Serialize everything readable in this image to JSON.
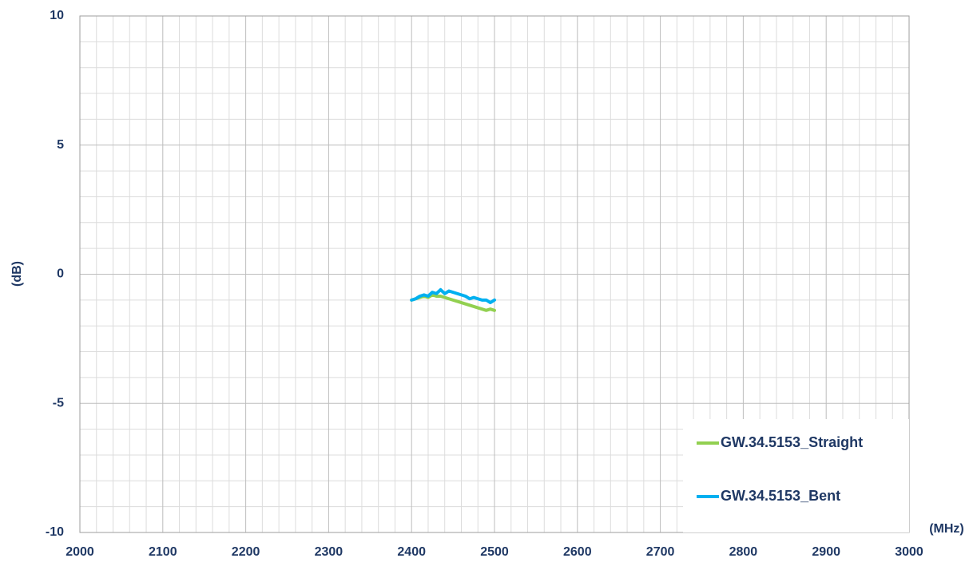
{
  "chart_data": {
    "type": "line",
    "x_label": "(MHz)",
    "y_label": "(dB)",
    "x": [
      2400,
      2405,
      2410,
      2415,
      2420,
      2425,
      2430,
      2435,
      2440,
      2445,
      2450,
      2455,
      2460,
      2465,
      2470,
      2475,
      2480,
      2485,
      2490,
      2495,
      2500
    ],
    "series": [
      {
        "name": "GW.34.5153_Straight",
        "color": "#92d050",
        "values": [
          -1.0,
          -0.95,
          -0.9,
          -0.85,
          -0.9,
          -0.8,
          -0.85,
          -0.85,
          -0.9,
          -0.95,
          -1.0,
          -1.05,
          -1.1,
          -1.15,
          -1.2,
          -1.25,
          -1.3,
          -1.35,
          -1.4,
          -1.35,
          -1.4
        ]
      },
      {
        "name": "GW.34.5153_Bent",
        "color": "#00b0f0",
        "values": [
          -1.0,
          -0.95,
          -0.85,
          -0.8,
          -0.85,
          -0.7,
          -0.75,
          -0.6,
          -0.75,
          -0.65,
          -0.7,
          -0.75,
          -0.8,
          -0.85,
          -0.95,
          -0.9,
          -0.95,
          -1.0,
          -1.0,
          -1.1,
          -1.0
        ]
      }
    ],
    "xlim": [
      2000,
      3000
    ],
    "xticks": [
      2000,
      2100,
      2200,
      2300,
      2400,
      2500,
      2600,
      2700,
      2800,
      2900,
      3000
    ],
    "ylim": [
      -10,
      10
    ],
    "yticks": [
      -10,
      -5,
      0,
      5,
      10
    ],
    "xminor": [
      2020,
      2040,
      2060,
      2080,
      2120,
      2140,
      2160,
      2180,
      2220,
      2240,
      2260,
      2280,
      2320,
      2340,
      2360,
      2380,
      2420,
      2440,
      2460,
      2480,
      2520,
      2540,
      2560,
      2580,
      2620,
      2640,
      2660,
      2680,
      2720,
      2740,
      2760,
      2780,
      2820,
      2840,
      2860,
      2880,
      2920,
      2940,
      2960,
      2980
    ],
    "yminor": [
      -9,
      -8,
      -7,
      -6,
      -4,
      -3,
      -2,
      -1,
      1,
      2,
      3,
      4,
      6,
      7,
      8,
      9
    ],
    "grid": true,
    "legend": "lower right"
  }
}
